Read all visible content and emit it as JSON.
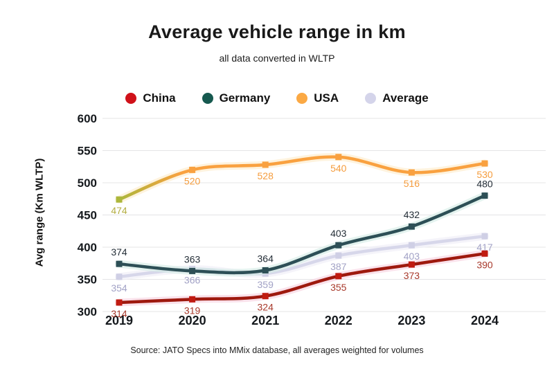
{
  "chart_data": {
    "type": "line",
    "title": "Average vehicle range in km",
    "subtitle": "all data converted in WLTP",
    "source": "Source: JATO Specs into MMix database, all averages weighted for volumes",
    "ylabel": "Avg range (Km WLTP)",
    "categories": [
      "2019",
      "2020",
      "2021",
      "2022",
      "2023",
      "2024"
    ],
    "yticks": [
      300,
      350,
      400,
      450,
      500,
      550,
      600
    ],
    "ylim": [
      300,
      600
    ],
    "grid": true,
    "legend_position": "top",
    "line_smoothing": true,
    "marker_shape": "square",
    "draw_order": [
      "Average",
      "China",
      "Germany",
      "USA"
    ],
    "series": [
      {
        "name": "China",
        "values": [
          314,
          319,
          324,
          355,
          373,
          390
        ],
        "color": "#9e190e",
        "marker_color": "#c01b11",
        "label_color": "#a8392b",
        "legend_color": "#d01119",
        "glow_color": "#f7d2e0",
        "label_position": "below"
      },
      {
        "name": "Germany",
        "values": [
          374,
          363,
          364,
          403,
          432,
          480
        ],
        "color": "#2d4f56",
        "marker_color": "#2d4f56",
        "label_color": "#242e37",
        "legend_color": "#16594f",
        "glow_color": "#d6ece7",
        "label_position": "above"
      },
      {
        "name": "USA",
        "values": [
          474,
          520,
          528,
          540,
          516,
          530
        ],
        "color": "#f9a140",
        "marker_color": "#f9a140",
        "label_color": "#f59d3e",
        "legend_color": "#fba944",
        "glow_color": "#fdeccd",
        "label_position": "below",
        "start_color": "#acb73b",
        "first_marker_color": "#acb73b",
        "first_label_color": "#b3ad41"
      },
      {
        "name": "Average",
        "values": [
          354,
          366,
          359,
          387,
          403,
          417
        ],
        "color": "#d7d7ea",
        "marker_color": "#cfcfe5",
        "label_color": "#a2a2c6",
        "legend_color": "#d4d4ea",
        "glow_color": "#efeef7",
        "label_position": "below"
      }
    ]
  }
}
